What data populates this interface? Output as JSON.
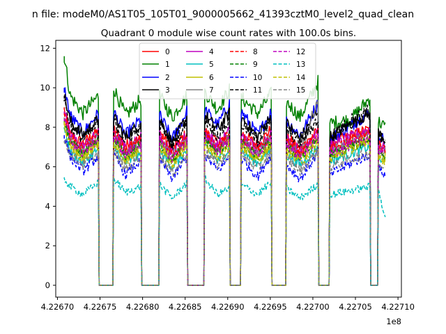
{
  "figure": {
    "suptitle": "n file: modeM0/AS1T05_105T01_9000005662_41393cztM0_level2_quad_clean",
    "title": "Quadrant 0 module wise count rates with 100.0s bins.",
    "offset_text": "1e8"
  },
  "chart_data": {
    "type": "line",
    "title": "Quadrant 0 module wise count rates with 100.0s bins.",
    "xlabel": "",
    "ylabel": "",
    "xlim": [
      422669800,
      422710400
    ],
    "ylim": [
      -0.6,
      12.4
    ],
    "x_offset_label": "1e8",
    "x_ticks": [
      422670000,
      422675000,
      422680000,
      422685000,
      422690000,
      422695000,
      422700000,
      422705000,
      422710000
    ],
    "x_tick_labels": [
      "4.22670",
      "4.22675",
      "4.22680",
      "4.22685",
      "4.22690",
      "4.22695",
      "4.22700",
      "4.22705",
      "4.22710"
    ],
    "y_ticks": [
      0,
      2,
      4,
      6,
      8,
      10,
      12
    ],
    "y_tick_labels": [
      "0",
      "2",
      "4",
      "6",
      "8",
      "10",
      "12"
    ],
    "grid": false,
    "legend_position": "top-center",
    "legend_columns": 4,
    "gaps": [
      [
        422674900,
        422676500
      ],
      [
        422679900,
        422681900
      ],
      [
        422685300,
        422687200
      ],
      [
        422690300,
        422691500
      ],
      [
        422695200,
        422696800
      ],
      [
        422700700,
        422701900
      ],
      [
        422706800,
        422707600
      ]
    ],
    "segments": [
      [
        422670800,
        422674800
      ],
      [
        422676600,
        422679800
      ],
      [
        422682000,
        422685200
      ],
      [
        422687300,
        422690200
      ],
      [
        422691600,
        422695100
      ],
      [
        422696900,
        422700600
      ],
      [
        422702000,
        422706700
      ],
      [
        422707700,
        422708500
      ]
    ],
    "series": [
      {
        "name": "0",
        "color": "#ff0000",
        "dash": "solid",
        "level": 7.6,
        "x": [
          422670800,
          422671500,
          422673000,
          422674800,
          422676600,
          422678000,
          422679800,
          422682000,
          422683500,
          422685200,
          422687300,
          422688800,
          422690200,
          422691600,
          422693500,
          422695100,
          422696900,
          422698500,
          422700600,
          422702000,
          422704500,
          422706700,
          422707700,
          422708500
        ],
        "y": [
          8.9,
          7.6,
          7.2,
          7.8,
          7.9,
          7.1,
          7.4,
          7.8,
          6.9,
          7.7,
          7.8,
          7.2,
          7.6,
          7.7,
          7.1,
          7.9,
          7.5,
          6.9,
          7.8,
          7.2,
          7.6,
          7.9,
          7.3,
          7.0
        ]
      },
      {
        "name": "1",
        "color": "#008000",
        "dash": "solid",
        "level": 9.0,
        "x": [
          422670800,
          422671500,
          422673000,
          422674800,
          422676600,
          422678000,
          422679800,
          422682000,
          422683500,
          422685200,
          422687300,
          422688800,
          422690200,
          422691600,
          422693500,
          422695100,
          422696900,
          422698500,
          422700600,
          422702000,
          422704500,
          422706700,
          422707700,
          422708500
        ],
        "y": [
          11.6,
          9.6,
          8.7,
          9.6,
          10.0,
          8.6,
          9.4,
          9.6,
          8.5,
          9.6,
          9.8,
          8.9,
          9.9,
          9.5,
          8.7,
          9.7,
          9.3,
          8.5,
          10.3,
          8.2,
          8.4,
          9.5,
          8.3,
          8.0
        ]
      },
      {
        "name": "2",
        "color": "#0000ff",
        "dash": "solid",
        "level": 8.2,
        "x": [
          422670800,
          422671500,
          422673000,
          422674800,
          422676600,
          422678000,
          422679800,
          422682000,
          422683500,
          422685200,
          422687300,
          422688800,
          422690200,
          422691600,
          422693500,
          422695100,
          422696900,
          422698500,
          422700600,
          422702000,
          422704500,
          422706700,
          422707700,
          422708500
        ],
        "y": [
          10.0,
          8.6,
          7.7,
          8.7,
          8.8,
          7.6,
          8.4,
          8.6,
          7.4,
          8.8,
          8.9,
          8.1,
          9.2,
          8.8,
          7.6,
          8.8,
          8.3,
          7.6,
          9.2,
          7.4,
          8.1,
          8.8,
          7.6,
          7.3
        ]
      },
      {
        "name": "3",
        "color": "#000000",
        "dash": "solid",
        "level": 8.1,
        "x": [
          422670800,
          422671500,
          422673000,
          422674800,
          422676600,
          422678000,
          422679800,
          422682000,
          422683500,
          422685200,
          422687300,
          422688800,
          422690200,
          422691600,
          422693500,
          422695100,
          422696900,
          422698500,
          422700600,
          422702000,
          422704500,
          422706700,
          422707700,
          422708500
        ],
        "y": [
          9.6,
          8.3,
          7.6,
          8.4,
          8.5,
          7.5,
          8.2,
          8.4,
          7.2,
          8.5,
          8.6,
          7.9,
          8.7,
          8.5,
          7.5,
          8.6,
          8.2,
          7.4,
          8.9,
          7.5,
          8.2,
          8.7,
          7.7,
          7.4
        ]
      },
      {
        "name": "4",
        "color": "#bf00bf",
        "dash": "solid",
        "level": 7.5,
        "x": [
          422670800,
          422671500,
          422673000,
          422674800,
          422676600,
          422678000,
          422679800,
          422682000,
          422683500,
          422685200,
          422687300,
          422688800,
          422690200,
          422691600,
          422693500,
          422695100,
          422696900,
          422698500,
          422700600,
          422702000,
          422704500,
          422706700,
          422707700,
          422708500
        ],
        "y": [
          8.8,
          7.6,
          7.0,
          7.7,
          7.8,
          6.9,
          7.5,
          7.6,
          6.7,
          7.6,
          7.8,
          7.1,
          7.8,
          7.6,
          6.9,
          7.7,
          7.4,
          6.8,
          7.9,
          7.0,
          7.5,
          7.9,
          7.2,
          6.9
        ]
      },
      {
        "name": "5",
        "color": "#00bfbf",
        "dash": "solid",
        "level": 6.7,
        "x": [
          422670800,
          422671500,
          422673000,
          422674800,
          422676600,
          422678000,
          422679800,
          422682000,
          422683500,
          422685200,
          422687300,
          422688800,
          422690200,
          422691600,
          422693500,
          422695100,
          422696900,
          422698500,
          422700600,
          422702000,
          422704500,
          422706700,
          422707700,
          422708500
        ],
        "y": [
          7.9,
          6.8,
          6.2,
          6.9,
          7.0,
          6.2,
          6.6,
          6.8,
          6.0,
          6.8,
          7.0,
          6.3,
          6.9,
          6.8,
          6.2,
          6.9,
          6.6,
          6.1,
          7.0,
          6.3,
          6.7,
          7.0,
          6.4,
          6.2
        ]
      },
      {
        "name": "6",
        "color": "#bfbf00",
        "dash": "solid",
        "level": 7.0,
        "x": [
          422670800,
          422671500,
          422673000,
          422674800,
          422676600,
          422678000,
          422679800,
          422682000,
          422683500,
          422685200,
          422687300,
          422688800,
          422690200,
          422691600,
          422693500,
          422695100,
          422696900,
          422698500,
          422700600,
          422702000,
          422704500,
          422706700,
          422707700,
          422708500
        ],
        "y": [
          8.2,
          7.1,
          6.6,
          7.2,
          7.3,
          6.5,
          7.0,
          7.1,
          6.3,
          7.1,
          7.3,
          6.7,
          7.3,
          7.1,
          6.5,
          7.2,
          6.9,
          6.4,
          7.4,
          6.6,
          7.0,
          7.4,
          6.7,
          6.5
        ]
      },
      {
        "name": "7",
        "color": "#808080",
        "dash": "solid",
        "level": 7.3,
        "x": [
          422670800,
          422671500,
          422673000,
          422674800,
          422676600,
          422678000,
          422679800,
          422682000,
          422683500,
          422685200,
          422687300,
          422688800,
          422690200,
          422691600,
          422693500,
          422695100,
          422696900,
          422698500,
          422700600,
          422702000,
          422704500,
          422706700,
          422707700,
          422708500
        ],
        "y": [
          8.5,
          7.4,
          6.8,
          7.5,
          7.6,
          6.7,
          7.3,
          7.4,
          6.5,
          7.4,
          7.6,
          6.9,
          7.7,
          7.4,
          6.7,
          7.5,
          7.2,
          6.6,
          9.5,
          6.8,
          7.2,
          7.6,
          7.0,
          6.7
        ]
      },
      {
        "name": "8",
        "color": "#ff0000",
        "dash": "dashed",
        "level": 7.4,
        "x": [
          422670800,
          422671500,
          422673000,
          422674800,
          422676600,
          422678000,
          422679800,
          422682000,
          422683500,
          422685200,
          422687300,
          422688800,
          422690200,
          422691600,
          422693500,
          422695100,
          422696900,
          422698500,
          422700600,
          422702000,
          422704500,
          422706700,
          422707700,
          422708500
        ],
        "y": [
          8.7,
          7.5,
          6.9,
          7.6,
          7.7,
          6.8,
          7.4,
          7.5,
          6.6,
          7.5,
          7.7,
          7.0,
          7.6,
          7.5,
          6.8,
          7.6,
          7.3,
          6.7,
          7.7,
          6.9,
          7.3,
          7.7,
          7.1,
          6.8
        ]
      },
      {
        "name": "9",
        "color": "#008000",
        "dash": "dashed",
        "level": 7.1,
        "x": [
          422670800,
          422671500,
          422673000,
          422674800,
          422676600,
          422678000,
          422679800,
          422682000,
          422683500,
          422685200,
          422687300,
          422688800,
          422690200,
          422691600,
          422693500,
          422695100,
          422696900,
          422698500,
          422700600,
          422702000,
          422704500,
          422706700,
          422707700,
          422708500
        ],
        "y": [
          8.3,
          7.2,
          6.6,
          7.3,
          7.4,
          6.5,
          7.1,
          7.2,
          6.3,
          7.2,
          7.4,
          6.7,
          7.3,
          7.2,
          6.5,
          7.3,
          7.0,
          6.4,
          7.4,
          6.6,
          7.0,
          7.4,
          6.8,
          6.5
        ]
      },
      {
        "name": "10",
        "color": "#0000ff",
        "dash": "dashed",
        "level": 6.4,
        "x": [
          422670800,
          422671500,
          422673000,
          422674800,
          422676600,
          422678000,
          422679800,
          422682000,
          422683500,
          422685200,
          422687300,
          422688800,
          422690200,
          422691600,
          422693500,
          422695100,
          422696900,
          422698500,
          422700600,
          422702000,
          422704500,
          422706700,
          422707700,
          422708500
        ],
        "y": [
          7.6,
          6.5,
          5.8,
          6.5,
          6.6,
          5.6,
          6.3,
          6.4,
          5.4,
          6.5,
          6.6,
          5.8,
          6.5,
          6.4,
          5.5,
          6.6,
          6.1,
          5.4,
          6.7,
          5.6,
          6.2,
          6.6,
          5.9,
          5.6
        ]
      },
      {
        "name": "11",
        "color": "#000000",
        "dash": "dashed",
        "level": 8.0,
        "x": [
          422670800,
          422671500,
          422673000,
          422674800,
          422676600,
          422678000,
          422679800,
          422682000,
          422683500,
          422685200,
          422687300,
          422688800,
          422690200,
          422691600,
          422693500,
          422695100,
          422696900,
          422698500,
          422700600,
          422702000,
          422704500,
          422706700,
          422707700,
          422708500
        ],
        "y": [
          9.4,
          8.1,
          7.4,
          8.2,
          8.3,
          7.3,
          8.0,
          8.2,
          7.1,
          8.2,
          8.4,
          7.6,
          8.3,
          8.2,
          7.3,
          8.3,
          7.9,
          7.2,
          8.4,
          7.4,
          8.4,
          8.9,
          7.6,
          7.2
        ]
      },
      {
        "name": "12",
        "color": "#bf00bf",
        "dash": "dashed",
        "level": 7.2,
        "x": [
          422670800,
          422671500,
          422673000,
          422674800,
          422676600,
          422678000,
          422679800,
          422682000,
          422683500,
          422685200,
          422687300,
          422688800,
          422690200,
          422691600,
          422693500,
          422695100,
          422696900,
          422698500,
          422700600,
          422702000,
          422704500,
          422706700,
          422707700,
          422708500
        ],
        "y": [
          8.4,
          7.3,
          6.7,
          7.4,
          7.5,
          6.6,
          7.2,
          7.3,
          6.4,
          7.3,
          7.5,
          6.8,
          7.4,
          7.3,
          6.6,
          7.4,
          7.1,
          6.5,
          7.5,
          6.7,
          7.1,
          7.5,
          6.9,
          6.6
        ]
      },
      {
        "name": "13",
        "color": "#00bfbf",
        "dash": "dashed",
        "level": 4.9,
        "x": [
          422670800,
          422671500,
          422673000,
          422674800,
          422676600,
          422678000,
          422679800,
          422682000,
          422683500,
          422685200,
          422687300,
          422688800,
          422690200,
          422691600,
          422693500,
          422695100,
          422696900,
          422698500,
          422700600,
          422702000,
          422704500,
          422706700,
          422707700,
          422708500
        ],
        "y": [
          5.4,
          5.0,
          4.6,
          5.2,
          5.4,
          4.7,
          5.0,
          5.1,
          4.4,
          5.2,
          5.4,
          4.6,
          4.9,
          5.1,
          4.6,
          5.2,
          4.9,
          4.4,
          5.1,
          4.6,
          4.8,
          5.0,
          4.8,
          3.5
        ]
      },
      {
        "name": "14",
        "color": "#bfbf00",
        "dash": "dashed",
        "level": 6.9,
        "x": [
          422670800,
          422671500,
          422673000,
          422674800,
          422676600,
          422678000,
          422679800,
          422682000,
          422683500,
          422685200,
          422687300,
          422688800,
          422690200,
          422691600,
          422693500,
          422695100,
          422696900,
          422698500,
          422700600,
          422702000,
          422704500,
          422706700,
          422707700,
          422708500
        ],
        "y": [
          8.1,
          7.0,
          6.4,
          7.1,
          7.2,
          6.3,
          6.9,
          7.0,
          6.1,
          7.0,
          7.2,
          6.5,
          7.1,
          7.0,
          6.3,
          7.1,
          6.8,
          6.2,
          7.2,
          6.4,
          6.9,
          7.2,
          6.6,
          6.3
        ]
      },
      {
        "name": "15",
        "color": "#808080",
        "dash": "dashed",
        "level": 6.6,
        "x": [
          422670800,
          422671500,
          422673000,
          422674800,
          422676600,
          422678000,
          422679800,
          422682000,
          422683500,
          422685200,
          422687300,
          422688800,
          422690200,
          422691600,
          422693500,
          422695100,
          422696900,
          422698500,
          422700600,
          422702000,
          422704500,
          422706700,
          422707700,
          422708500
        ],
        "y": [
          7.3,
          6.7,
          6.1,
          6.7,
          6.8,
          5.9,
          6.5,
          6.6,
          5.7,
          6.6,
          6.8,
          6.1,
          6.7,
          6.6,
          5.9,
          6.7,
          6.4,
          5.8,
          6.8,
          6.0,
          6.4,
          6.7,
          6.2,
          5.9
        ]
      }
    ]
  }
}
